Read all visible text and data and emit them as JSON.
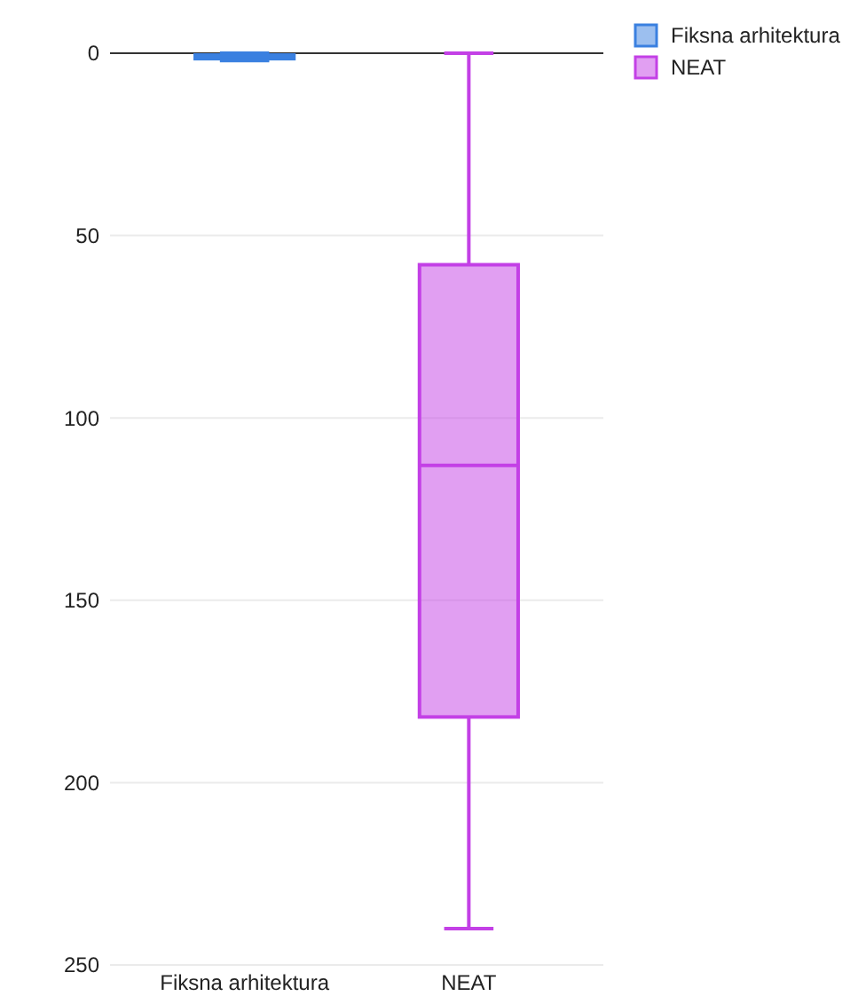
{
  "chart_data": {
    "type": "box",
    "categories": [
      "Fiksna arhitektura",
      "NEAT"
    ],
    "series": [
      {
        "name": "Fiksna arhitektura",
        "color": "#3a80e0",
        "boxes": [
          {
            "low": 0,
            "q1": 0.5,
            "median": 1,
            "q3": 1.5,
            "high": 2
          },
          null
        ]
      },
      {
        "name": "NEAT",
        "color": "#c340e6",
        "boxes": [
          null,
          {
            "low": 0,
            "q1": 58,
            "median": 113,
            "q3": 182,
            "high": 240
          }
        ]
      }
    ],
    "ylim": [
      250,
      0
    ],
    "yticks": [
      0,
      50,
      100,
      150,
      200,
      250
    ],
    "grid": "y",
    "legend": "top right"
  }
}
